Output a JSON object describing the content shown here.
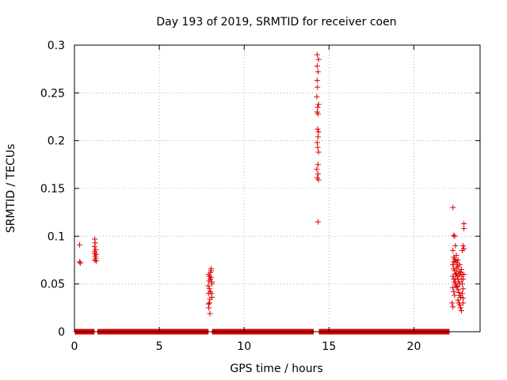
{
  "chart_data": {
    "type": "scatter",
    "title": "Day 193 of 2019, SRMTID for receiver coen",
    "xlabel": "GPS time / hours",
    "ylabel": "SRMTID / TECUs",
    "xlim": [
      0,
      23.9
    ],
    "ylim": [
      0,
      0.3
    ],
    "grid": true,
    "marker": "+",
    "color": "#dd0000",
    "x_ticks": [
      0,
      5,
      10,
      15,
      20
    ],
    "x_tick_labels": [
      "0",
      "5",
      "10",
      "15",
      "20"
    ],
    "y_ticks": [
      0,
      0.05,
      0.1,
      0.15,
      0.2,
      0.25,
      0.3
    ],
    "y_tick_labels": [
      "0",
      "0.05",
      "0.1",
      "0.15",
      "0.2",
      "0.25",
      "0.3"
    ],
    "baseline_segments": [
      [
        0.02,
        1.18
      ],
      [
        1.35,
        7.9
      ],
      [
        8.1,
        14.1
      ],
      [
        14.4,
        22.1
      ]
    ],
    "series": [
      {
        "name": "SRMTID",
        "points": [
          [
            0.3,
            0.091
          ],
          [
            0.3,
            0.073
          ],
          [
            0.35,
            0.072
          ],
          [
            1.2,
            0.097
          ],
          [
            1.22,
            0.093
          ],
          [
            1.18,
            0.089
          ],
          [
            1.25,
            0.086
          ],
          [
            1.2,
            0.084
          ],
          [
            1.28,
            0.081
          ],
          [
            1.22,
            0.079
          ],
          [
            1.25,
            0.077
          ],
          [
            1.2,
            0.075
          ],
          [
            1.28,
            0.074
          ],
          [
            1.18,
            0.082
          ],
          [
            7.9,
            0.06
          ],
          [
            7.95,
            0.058
          ],
          [
            7.92,
            0.053
          ],
          [
            7.88,
            0.048
          ],
          [
            7.95,
            0.045
          ],
          [
            7.9,
            0.04
          ],
          [
            7.98,
            0.034
          ],
          [
            7.95,
            0.03
          ],
          [
            7.92,
            0.025
          ],
          [
            7.98,
            0.019
          ],
          [
            7.9,
            0.029
          ],
          [
            8.0,
            0.055
          ],
          [
            8.02,
            0.062
          ],
          [
            8.05,
            0.064
          ],
          [
            8.05,
            0.066
          ],
          [
            8.1,
            0.052
          ],
          [
            8.1,
            0.05
          ],
          [
            8.08,
            0.04
          ],
          [
            8.1,
            0.036
          ],
          [
            8.05,
            0.057
          ],
          [
            8.0,
            0.042
          ],
          [
            14.3,
            0.29
          ],
          [
            14.38,
            0.285
          ],
          [
            14.3,
            0.278
          ],
          [
            14.35,
            0.272
          ],
          [
            14.3,
            0.263
          ],
          [
            14.32,
            0.256
          ],
          [
            14.28,
            0.246
          ],
          [
            14.38,
            0.238
          ],
          [
            14.33,
            0.235
          ],
          [
            14.3,
            0.23
          ],
          [
            14.35,
            0.228
          ],
          [
            14.33,
            0.212
          ],
          [
            14.38,
            0.209
          ],
          [
            14.35,
            0.204
          ],
          [
            14.3,
            0.198
          ],
          [
            14.33,
            0.193
          ],
          [
            14.38,
            0.188
          ],
          [
            14.35,
            0.175
          ],
          [
            14.28,
            0.17
          ],
          [
            14.35,
            0.165
          ],
          [
            14.3,
            0.161
          ],
          [
            14.38,
            0.159
          ],
          [
            14.35,
            0.115
          ],
          [
            22.3,
            0.13
          ],
          [
            22.35,
            0.101
          ],
          [
            22.4,
            0.1
          ],
          [
            22.45,
            0.09
          ],
          [
            22.3,
            0.085
          ],
          [
            22.35,
            0.078
          ],
          [
            22.4,
            0.076
          ],
          [
            22.45,
            0.074
          ],
          [
            22.3,
            0.07
          ],
          [
            22.35,
            0.066
          ],
          [
            22.4,
            0.064
          ],
          [
            22.45,
            0.06
          ],
          [
            22.3,
            0.058
          ],
          [
            22.35,
            0.055
          ],
          [
            22.4,
            0.052
          ],
          [
            22.45,
            0.05
          ],
          [
            22.3,
            0.046
          ],
          [
            22.35,
            0.042
          ],
          [
            22.4,
            0.038
          ],
          [
            22.25,
            0.03
          ],
          [
            22.3,
            0.026
          ],
          [
            22.35,
            0.073
          ],
          [
            22.5,
            0.08
          ],
          [
            22.55,
            0.072
          ],
          [
            22.6,
            0.068
          ],
          [
            22.65,
            0.063
          ],
          [
            22.5,
            0.061
          ],
          [
            22.55,
            0.058
          ],
          [
            22.6,
            0.055
          ],
          [
            22.65,
            0.052
          ],
          [
            22.7,
            0.05
          ],
          [
            22.55,
            0.047
          ],
          [
            22.6,
            0.044
          ],
          [
            22.65,
            0.041
          ],
          [
            22.7,
            0.038
          ],
          [
            22.75,
            0.036
          ],
          [
            22.6,
            0.033
          ],
          [
            22.65,
            0.03
          ],
          [
            22.7,
            0.028
          ],
          [
            22.75,
            0.025
          ],
          [
            22.8,
            0.022
          ],
          [
            22.7,
            0.059
          ],
          [
            22.75,
            0.062
          ],
          [
            22.8,
            0.065
          ],
          [
            22.85,
            0.06
          ],
          [
            22.8,
            0.055
          ],
          [
            22.85,
            0.05
          ],
          [
            22.9,
            0.045
          ],
          [
            22.85,
            0.04
          ],
          [
            22.9,
            0.035
          ],
          [
            22.9,
            0.03
          ],
          [
            22.9,
            0.055
          ],
          [
            22.95,
            0.06
          ],
          [
            22.85,
            0.085
          ],
          [
            22.9,
            0.09
          ],
          [
            22.95,
            0.087
          ],
          [
            22.95,
            0.108
          ],
          [
            22.95,
            0.113
          ],
          [
            22.5,
            0.066
          ],
          [
            22.55,
            0.07
          ],
          [
            22.6,
            0.075
          ],
          [
            22.7,
            0.07
          ],
          [
            22.45,
            0.055
          ],
          [
            22.5,
            0.048
          ]
        ]
      }
    ]
  }
}
